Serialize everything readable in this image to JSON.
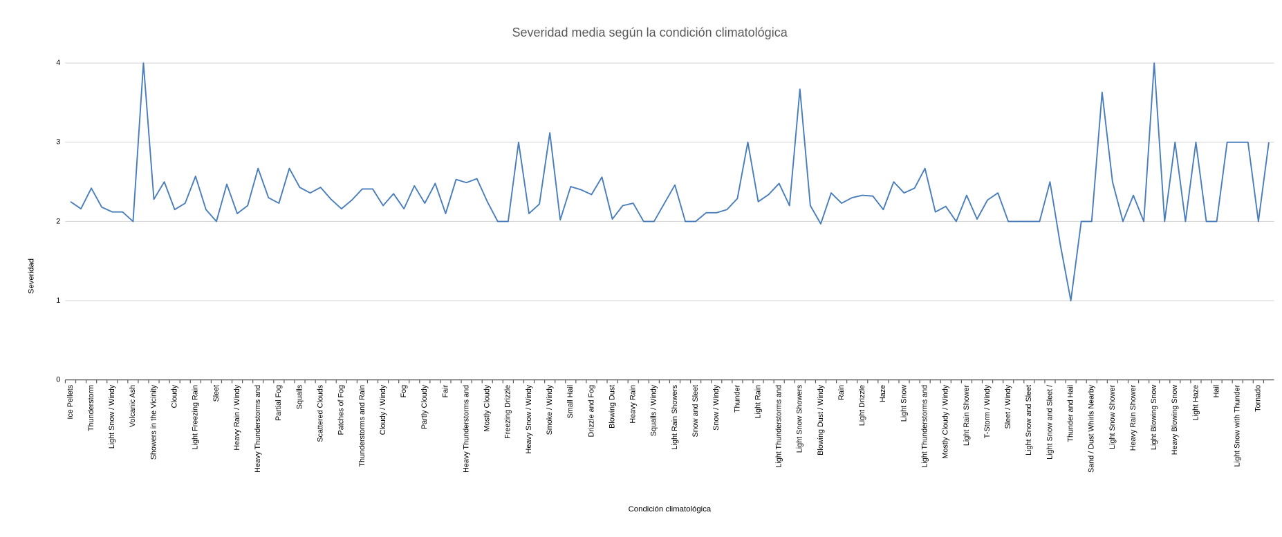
{
  "chart_data": {
    "type": "line",
    "title": "Severidad media según la condición climatológica",
    "xlabel": "Condición climatológica",
    "ylabel": "Severidad",
    "categories": [
      "Ice Pellets",
      null,
      "Thunderstorm",
      null,
      "Light Snow / Windy",
      null,
      "Volcanic Ash",
      null,
      "Showers in the Vicinity",
      null,
      "Cloudy",
      null,
      "Light Freezing Rain",
      null,
      "Sleet",
      null,
      "Heavy Rain / Windy",
      null,
      "Heavy Thunderstorms and",
      null,
      "Partial Fog",
      null,
      "Squalls",
      null,
      "Scattered Clouds",
      null,
      "Patches of Fog",
      null,
      "Thunderstorms and Rain",
      null,
      "Cloudy / Windy",
      null,
      "Fog",
      null,
      "Partly Cloudy",
      null,
      "Fair",
      null,
      "Heavy Thunderstorms and",
      null,
      "Mostly Cloudy",
      null,
      "Freezing Drizzle",
      null,
      "Heavy Snow / Windy",
      null,
      "Smoke / Windy",
      null,
      "Small Hail",
      null,
      "Drizzle and Fog",
      null,
      "Blowing Dust",
      null,
      "Heavy Rain",
      null,
      "Squalls / Windy",
      null,
      "Light Rain Showers",
      null,
      "Snow and Sleet",
      null,
      "Snow / Windy",
      null,
      "Thunder",
      null,
      "Light Rain",
      null,
      "Light Thunderstorms and",
      null,
      "Light Snow Showers",
      null,
      "Blowing Dust / Windy",
      null,
      "Rain",
      null,
      "Light Drizzle",
      null,
      "Haze",
      null,
      "Light Snow",
      null,
      "Light Thunderstorms and",
      null,
      "Mostly Cloudy / Windy",
      null,
      "Light Rain Shower",
      null,
      "T-Storm / Windy",
      null,
      "Sleet / Windy",
      null,
      "Light Snow and Sleet",
      null,
      "Light Snow and Sleet /",
      null,
      "Thunder and Hail",
      null,
      "Sand / Dust Whirls Nearby",
      null,
      "Light Snow Shower",
      null,
      "Heavy Rain Shower",
      null,
      "Light Blowing Snow",
      null,
      "Heavy Blowing Snow",
      null,
      "Light Haze",
      null,
      "Hail",
      null,
      "Light Snow with Thunder",
      null,
      "Tornado",
      null
    ],
    "series": [
      {
        "name": "Severidad",
        "color": "#4a7ebb",
        "values": [
          2.25,
          2.16,
          2.42,
          2.18,
          2.12,
          2.12,
          2.0,
          4.0,
          2.28,
          2.5,
          2.15,
          2.23,
          2.57,
          2.15,
          2.0,
          2.47,
          2.1,
          2.2,
          2.67,
          2.3,
          2.23,
          2.67,
          2.43,
          2.36,
          2.43,
          2.28,
          2.16,
          2.27,
          2.41,
          2.41,
          2.2,
          2.35,
          2.16,
          2.45,
          2.23,
          2.48,
          2.1,
          2.53,
          2.49,
          2.54,
          2.25,
          2.0,
          2.0,
          3.0,
          2.1,
          2.22,
          3.12,
          2.02,
          2.44,
          2.4,
          2.34,
          2.56,
          2.03,
          2.2,
          2.23,
          2.0,
          2.0,
          2.23,
          2.46,
          2.0,
          2.0,
          2.11,
          2.11,
          2.15,
          2.29,
          3.0,
          2.25,
          2.34,
          2.48,
          2.2,
          3.67,
          2.2,
          1.97,
          2.36,
          2.23,
          2.3,
          2.33,
          2.32,
          2.15,
          2.5,
          2.36,
          2.42,
          2.67,
          2.12,
          2.19,
          2.0,
          2.33,
          2.03,
          2.27,
          2.36,
          2.0,
          2.0,
          2.0,
          2.0,
          2.5,
          1.7,
          1.0,
          2.0,
          2.0,
          3.63,
          2.5,
          2.0,
          2.33,
          2.0,
          4.0,
          2.0,
          3.0,
          2.0,
          3.0,
          2.0,
          2.0,
          3.0,
          3.0,
          3.0,
          2.0,
          3.0
        ]
      }
    ],
    "ylim": [
      0,
      4
    ],
    "yticks": [
      0,
      1,
      2,
      3,
      4
    ],
    "grid": true
  }
}
